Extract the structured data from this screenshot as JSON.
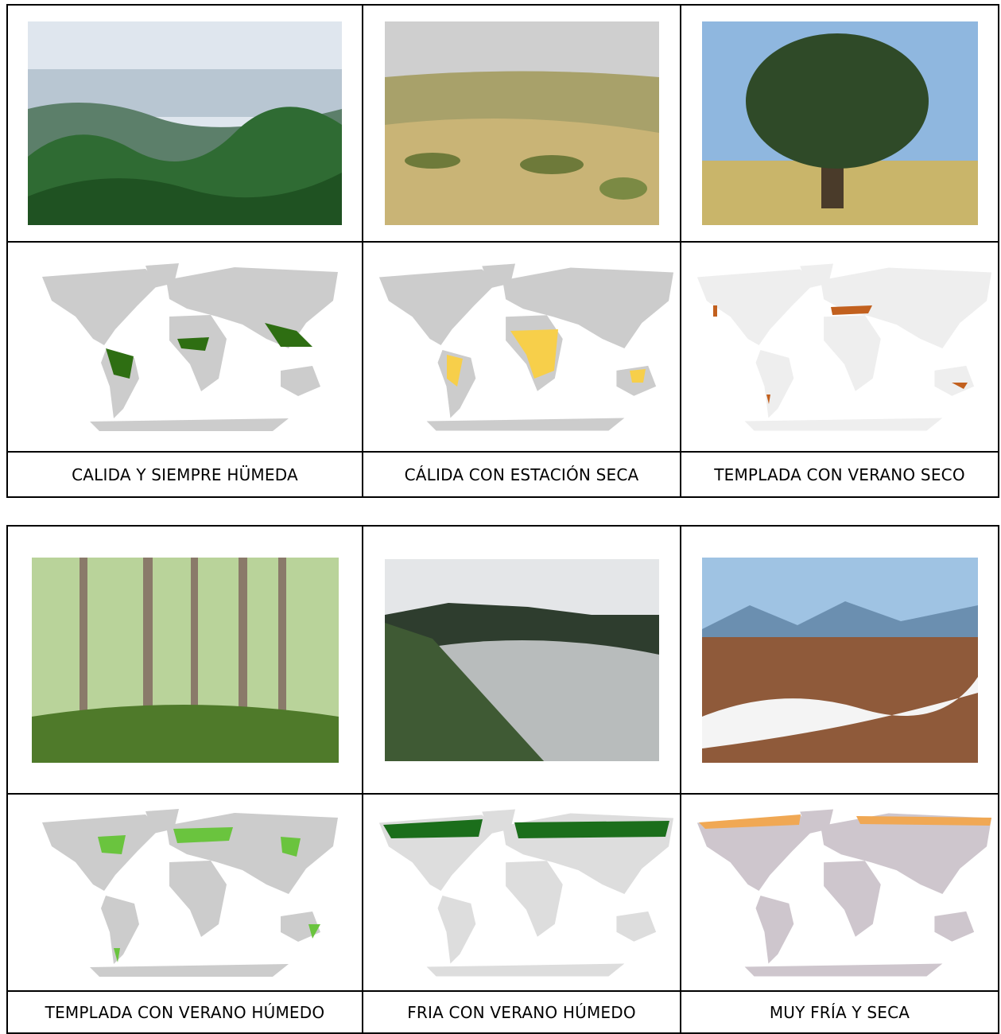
{
  "tables": [
    {
      "labels": [
        "CALIDA Y SIEMPRE HÜMEDA",
        "CÁLIDA CON ESTACIÓN SECA",
        "TEMPLADA CON VERANO SECO"
      ]
    },
    {
      "labels": [
        "TEMPLADA CON VERANO HÚMEDO",
        "FRIA CON VERANO HÚMEDO",
        "MUY FRÍA Y SECA"
      ]
    }
  ]
}
